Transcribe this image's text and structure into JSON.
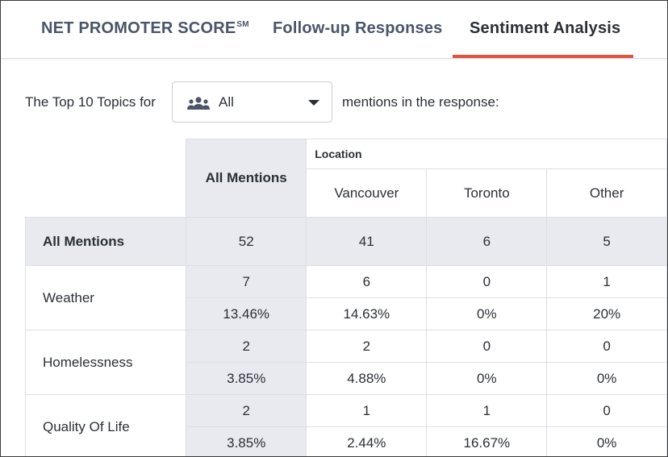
{
  "tabs": [
    {
      "label": "NET PROMOTER SCORE",
      "sup": "SM",
      "active": false
    },
    {
      "label": "Follow-up Responses",
      "active": false
    },
    {
      "label": "Sentiment Analysis",
      "active": true
    }
  ],
  "accent_color": "#e0533f",
  "filter": {
    "prefix": "The Top 10 Topics for",
    "dropdown_icon": "people-group-icon",
    "dropdown_value": "All",
    "suffix": "mentions in the response:"
  },
  "table": {
    "all_mentions_header": "All Mentions",
    "location_header": "Location",
    "locations": [
      "Vancouver",
      "Toronto",
      "Other"
    ],
    "totals": {
      "label": "All Mentions",
      "all": "52",
      "values": [
        "41",
        "6",
        "5"
      ]
    },
    "topics": [
      {
        "name": "Weather",
        "count": {
          "all": "7",
          "values": [
            "6",
            "0",
            "1"
          ]
        },
        "pct": {
          "all": "13.46%",
          "values": [
            "14.63%",
            "0%",
            "20%"
          ]
        }
      },
      {
        "name": "Homelessness",
        "count": {
          "all": "2",
          "values": [
            "2",
            "0",
            "0"
          ]
        },
        "pct": {
          "all": "3.85%",
          "values": [
            "4.88%",
            "0%",
            "0%"
          ]
        }
      },
      {
        "name": "Quality Of Life",
        "count": {
          "all": "2",
          "values": [
            "1",
            "1",
            "0"
          ]
        },
        "pct": {
          "all": "3.85%",
          "values": [
            "2.44%",
            "16.67%",
            "0%"
          ]
        }
      }
    ]
  }
}
